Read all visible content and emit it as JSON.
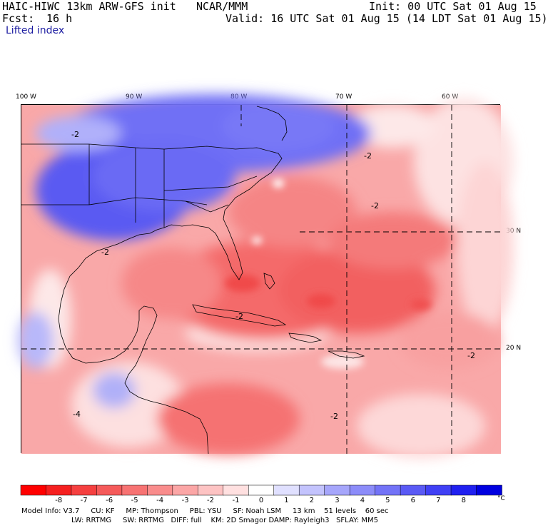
{
  "header": {
    "model_title": "HAIC-HIWC 13km ARW-GFS init",
    "org": "NCAR/MMM",
    "init": "Init: 00 UTC Sat 01 Aug 15",
    "fcst_label": "Fcst:",
    "fcst_value": "16 h",
    "valid": "Valid: 16 UTC Sat 01 Aug 15 (14 LDT Sat 01 Aug 15)",
    "field": "Lifted index"
  },
  "map": {
    "lon_labels": [
      "100 W",
      "90 W",
      "80 W",
      "70 W",
      "60 W"
    ],
    "lat_labels": [
      "30 N",
      "20 N"
    ],
    "contour_labels": [
      "-2",
      "-2",
      "-2",
      "-2",
      "-2",
      "-4",
      "-2",
      "-2"
    ]
  },
  "colorbar": {
    "ticks": [
      "-8",
      "-7",
      "-6",
      "-5",
      "-4",
      "-3",
      "-2",
      "-1",
      "0",
      "1",
      "2",
      "3",
      "4",
      "5",
      "6",
      "7",
      "8"
    ],
    "unit": "°C",
    "colors": [
      "#ff0000",
      "#f52020",
      "#f54040",
      "#f55a5a",
      "#f77373",
      "#f98c8c",
      "#fba6a6",
      "#fdc3c3",
      "#ffe0e0",
      "#ffffff",
      "#e0e0ff",
      "#c3c3fd",
      "#a6a6fb",
      "#8c8cf9",
      "#7373f7",
      "#5a5af5",
      "#4040f5",
      "#2020f0",
      "#0000e0"
    ]
  },
  "model_info": {
    "line1": "Model Info: V3.7     CU: KF     MP: Thompson     PBL: YSU     SF: Noah LSM     13 km    51 levels    60 sec",
    "line2": "LW: RRTMG     SW: RRTMG   DIFF: full    KM: 2D Smagor DAMP: Rayleigh3   SFLAY: MM5"
  }
}
